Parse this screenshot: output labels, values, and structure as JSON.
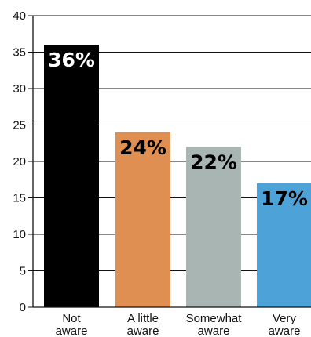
{
  "chart_data": {
    "type": "bar",
    "categories": [
      [
        "Not",
        "aware"
      ],
      [
        "A little",
        "aware"
      ],
      [
        "Somewhat",
        "aware"
      ],
      [
        "Very",
        "aware"
      ]
    ],
    "values": [
      36,
      24,
      22,
      17
    ],
    "data_labels": [
      "36%",
      "24%",
      "22%",
      "17%"
    ],
    "bar_colors": [
      "#000000",
      "#e08f52",
      "#a9b5b3",
      "#4da2d8"
    ],
    "label_colors": [
      "#ffffff",
      "#000000",
      "#000000",
      "#000000"
    ],
    "ylim": [
      0,
      40
    ],
    "yticks": [
      0,
      5,
      10,
      15,
      20,
      25,
      30,
      35,
      40
    ],
    "grid": true,
    "title": "",
    "xlabel": "",
    "ylabel": ""
  }
}
